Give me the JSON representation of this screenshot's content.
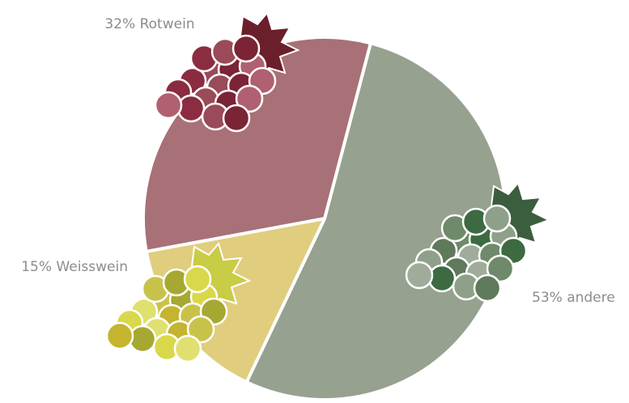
{
  "chart_data": {
    "type": "pie",
    "values": [
      53,
      15,
      32
    ],
    "value_labels": [
      "53% andere",
      "15% Weisswein",
      "32% Rotwein"
    ],
    "colors": [
      "#96a18f",
      "#e0cd7e",
      "#a87077"
    ]
  }
}
